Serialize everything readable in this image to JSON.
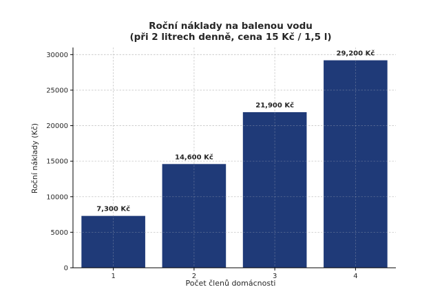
{
  "chart_data": {
    "type": "bar",
    "title_lines": [
      "Roční náklady na balenou vodu",
      "(při 2 litrech denně, cena 15 Kč / 1,5 l)"
    ],
    "xlabel": "Počet členů domácnosti",
    "ylabel": "Roční náklady (Kč)",
    "categories": [
      "1",
      "2",
      "3",
      "4"
    ],
    "values": [
      7300,
      14600,
      21900,
      29200
    ],
    "data_labels": [
      "7,300 Kč",
      "14,600 Kč",
      "21,900 Kč",
      "29,200 Kč"
    ],
    "yticks": [
      0,
      5000,
      10000,
      15000,
      20000,
      25000,
      30000
    ],
    "ytick_labels": [
      "0",
      "5000",
      "10000",
      "15000",
      "20000",
      "25000",
      "30000"
    ],
    "ylim": [
      0,
      31000
    ],
    "grid": true,
    "bar_color": "#1f3a78"
  }
}
